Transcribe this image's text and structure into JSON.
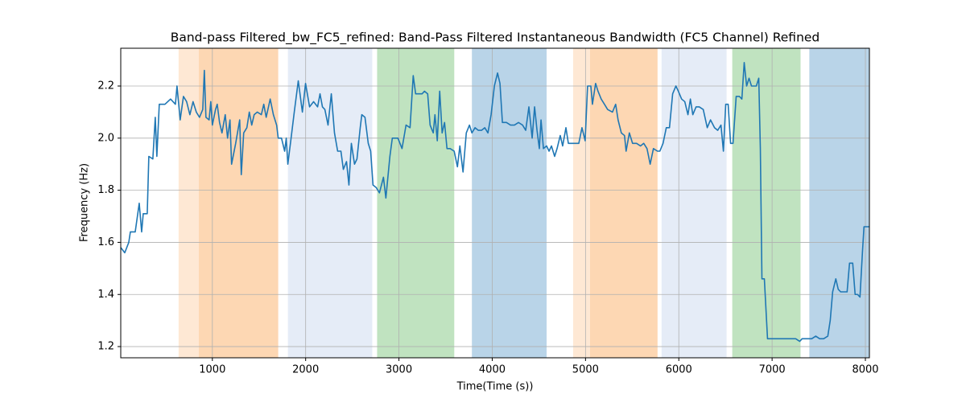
{
  "chart_data": {
    "type": "line",
    "title": "Band-pass Filtered_bw_FC5_refined: Band-Pass Filtered Instantaneous Bandwidth (FC5 Channel) Refined",
    "xlabel": "Time(Time (s))",
    "ylabel": "Frequency (Hz)",
    "xlim": [
      18,
      8043
    ],
    "ylim": [
      1.157,
      2.345
    ],
    "xticks": [
      1000,
      2000,
      3000,
      4000,
      5000,
      6000,
      7000,
      8000
    ],
    "yticks": [
      1.2,
      1.4,
      1.6,
      1.8,
      {
        "value": 2,
        "label": "2.0"
      },
      2.2
    ],
    "grid": true,
    "spans": [
      {
        "start": 638,
        "end": 854,
        "color": "#fee8d4"
      },
      {
        "start": 854,
        "end": 1706,
        "color": "#fdd7b3"
      },
      {
        "start": 1810,
        "end": 2714,
        "color": "#e5ecf7"
      },
      {
        "start": 2766,
        "end": 3593,
        "color": "#c0e3c0"
      },
      {
        "start": 3782,
        "end": 4583,
        "color": "#b9d4e8"
      },
      {
        "start": 4867,
        "end": 5048,
        "color": "#fee8d4"
      },
      {
        "start": 5048,
        "end": 5772,
        "color": "#fdd7b3"
      },
      {
        "start": 5815,
        "end": 6512,
        "color": "#e5ecf7"
      },
      {
        "start": 6573,
        "end": 7305,
        "color": "#c0e3c0"
      },
      {
        "start": 7399,
        "end": 8043,
        "color": "#b9d4e8"
      }
    ],
    "series": [
      {
        "color": "#1f77b4",
        "x": [
          18,
          61,
          104,
          121,
          173,
          216,
          242,
          259,
          302,
          319,
          362,
          388,
          405,
          431,
          492,
          552,
          604,
          621,
          655,
          690,
          724,
          759,
          793,
          828,
          862,
          897,
          914,
          931,
          965,
          983,
          1000,
          1034,
          1052,
          1077,
          1103,
          1138,
          1163,
          1189,
          1206,
          1250,
          1293,
          1310,
          1336,
          1370,
          1396,
          1422,
          1448,
          1482,
          1525,
          1551,
          1577,
          1620,
          1654,
          1689,
          1706,
          1741,
          1775,
          1792,
          1809,
          1844,
          1878,
          1921,
          1965,
          1999,
          2042,
          2085,
          2128,
          2154,
          2180,
          2206,
          2240,
          2275,
          2309,
          2343,
          2378,
          2404,
          2438,
          2464,
          2490,
          2524,
          2550,
          2585,
          2602,
          2636,
          2671,
          2697,
          2722,
          2757,
          2791,
          2834,
          2860,
          2903,
          2929,
          2989,
          3033,
          3076,
          3119,
          3153,
          3179,
          3248,
          3274,
          3308,
          3334,
          3368,
          3386,
          3411,
          3437,
          3463,
          3489,
          3515,
          3549,
          3592,
          3627,
          3653,
          3687,
          3722,
          3756,
          3782,
          3816,
          3851,
          3885,
          3920,
          3954,
          3988,
          4023,
          4057,
          4083,
          4109,
          4152,
          4196,
          4238,
          4282,
          4325,
          4359,
          4393,
          4428,
          4454,
          4480,
          4505,
          4523,
          4549,
          4583,
          4609,
          4635,
          4669,
          4695,
          4729,
          4755,
          4790,
          4816,
          4876,
          4928,
          4962,
          4996,
          5022,
          5057,
          5074,
          5108,
          5134,
          5168,
          5203,
          5237,
          5289,
          5323,
          5349,
          5384,
          5418,
          5435,
          5470,
          5504,
          5547,
          5590,
          5624,
          5659,
          5693,
          5728,
          5771,
          5797,
          5831,
          5866,
          5900,
          5934,
          5969,
          5995,
          6030,
          6064,
          6098,
          6124,
          6150,
          6185,
          6219,
          6262,
          6305,
          6340,
          6383,
          6417,
          6452,
          6478,
          6503,
          6529,
          6555,
          6581,
          6615,
          6650,
          6676,
          6701,
          6727,
          6753,
          6779,
          6805,
          6831,
          6857,
          6874,
          6891,
          6917,
          6951,
          7012,
          7081,
          7167,
          7253,
          7296,
          7322,
          7365,
          7425,
          7468,
          7510,
          7553,
          7597,
          7623,
          7649,
          7683,
          7709,
          7735,
          7770,
          7804,
          7830,
          7864,
          7890,
          7916,
          7942,
          7968,
          7985,
          8043
        ],
        "values": [
          1.58,
          1.56,
          1.6,
          1.64,
          1.64,
          1.75,
          1.64,
          1.71,
          1.71,
          1.93,
          1.92,
          2.08,
          1.93,
          2.13,
          2.13,
          2.15,
          2.13,
          2.2,
          2.07,
          2.16,
          2.14,
          2.09,
          2.14,
          2.1,
          2.08,
          2.11,
          2.26,
          2.08,
          2.07,
          2.14,
          2.05,
          2.11,
          2.13,
          2.06,
          2.02,
          2.09,
          2,
          2.07,
          1.9,
          1.98,
          2.07,
          1.86,
          2.02,
          2.04,
          2.1,
          2.05,
          2.09,
          2.1,
          2.09,
          2.13,
          2.08,
          2.15,
          2.09,
          2.05,
          2,
          2,
          1.95,
          2,
          1.9,
          2,
          2.1,
          2.22,
          2.1,
          2.21,
          2.12,
          2.14,
          2.12,
          2.17,
          2.12,
          2.11,
          2.05,
          2.17,
          2.02,
          1.95,
          1.95,
          1.88,
          1.91,
          1.82,
          1.98,
          1.9,
          1.92,
          2.04,
          2.09,
          2.08,
          1.98,
          1.95,
          1.82,
          1.81,
          1.79,
          1.85,
          1.77,
          1.93,
          2,
          2,
          1.96,
          2.05,
          2.04,
          2.24,
          2.17,
          2.17,
          2.18,
          2.17,
          2.05,
          2.02,
          2.09,
          1.99,
          2.18,
          2.02,
          2.06,
          1.96,
          1.96,
          1.95,
          1.89,
          1.97,
          1.87,
          2.02,
          2.05,
          2.02,
          2.04,
          2.03,
          2.03,
          2.04,
          2.02,
          2.09,
          2.2,
          2.25,
          2.21,
          2.06,
          2.06,
          2.05,
          2.05,
          2.06,
          2.05,
          2.03,
          2.12,
          2,
          2.12,
          2.03,
          1.96,
          2.07,
          1.96,
          1.97,
          1.95,
          1.97,
          1.93,
          1.96,
          2.01,
          1.97,
          2.04,
          1.98,
          1.98,
          1.98,
          2.04,
          1.99,
          2.2,
          2.2,
          2.13,
          2.21,
          2.18,
          2.15,
          2.13,
          2.11,
          2.1,
          2.13,
          2.07,
          2.02,
          2.01,
          1.95,
          2.02,
          1.98,
          1.98,
          1.97,
          1.98,
          1.96,
          1.9,
          1.96,
          1.95,
          1.95,
          1.98,
          2.04,
          2.04,
          2.17,
          2.2,
          2.18,
          2.15,
          2.14,
          2.09,
          2.15,
          2.09,
          2.12,
          2.12,
          2.11,
          2.04,
          2.07,
          2.04,
          2.03,
          2.05,
          1.95,
          2.13,
          2.13,
          1.98,
          1.98,
          2.16,
          2.16,
          2.15,
          2.29,
          2.2,
          2.23,
          2.2,
          2.2,
          2.2,
          2.23,
          1.96,
          1.46,
          1.46,
          1.23,
          1.23,
          1.23,
          1.23,
          1.23,
          1.22,
          1.23,
          1.23,
          1.23,
          1.24,
          1.23,
          1.23,
          1.24,
          1.3,
          1.41,
          1.46,
          1.42,
          1.41,
          1.41,
          1.41,
          1.52,
          1.52,
          1.4,
          1.4,
          1.39,
          1.56,
          1.66,
          1.66
        ]
      }
    ]
  }
}
